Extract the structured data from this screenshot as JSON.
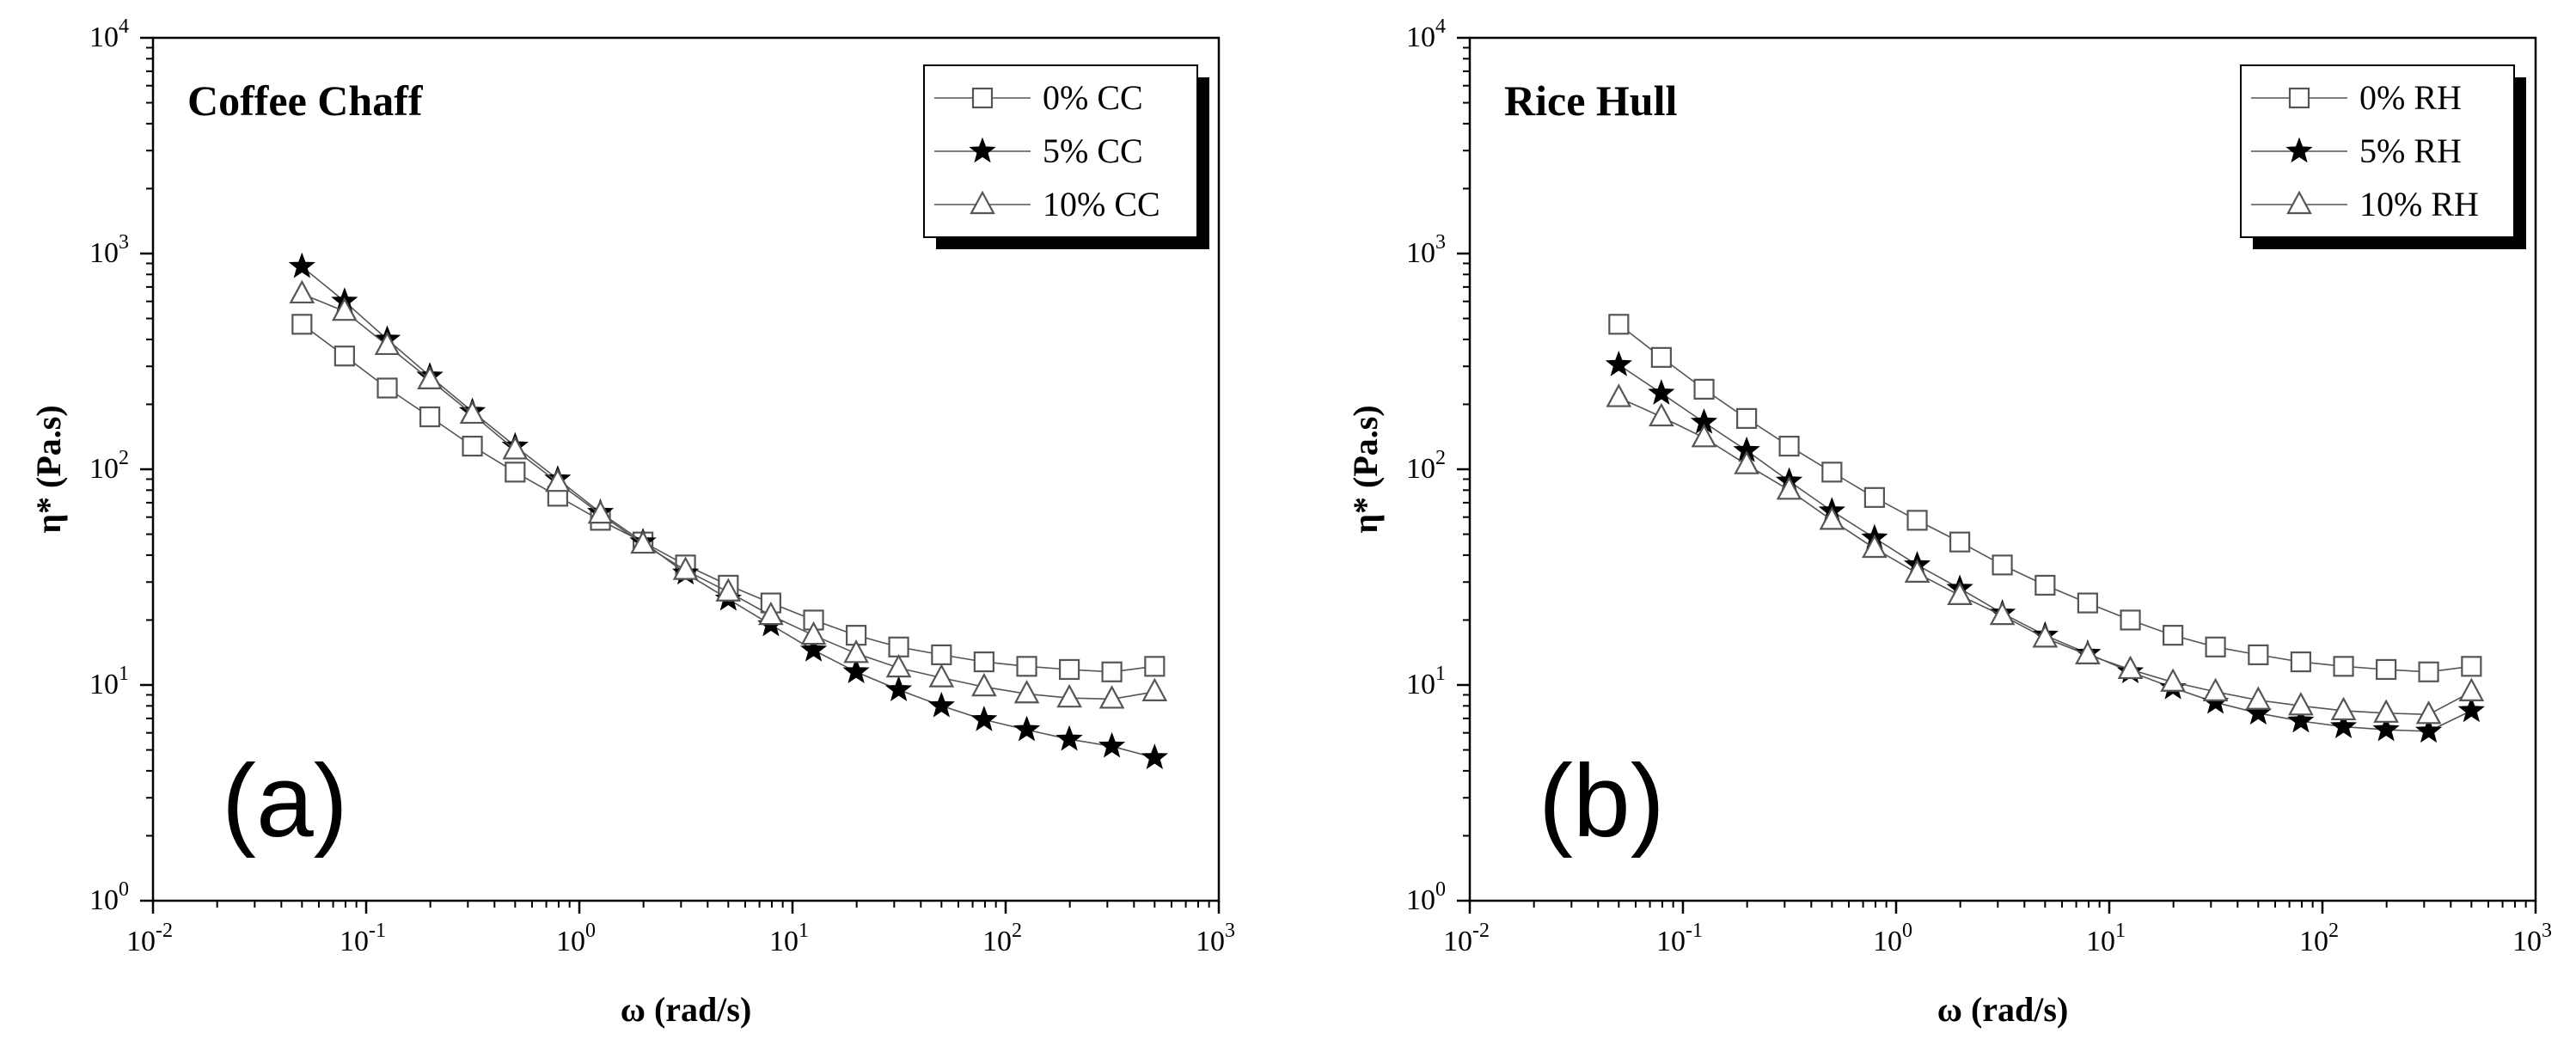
{
  "colors": {
    "axis": "#000000",
    "series_line": "#555555",
    "open_marker": "#555555",
    "filled_marker": "#000000",
    "background": "#ffffff"
  },
  "chart_data": [
    {
      "type": "line",
      "title": "Coffee Chaff",
      "panel_label": "(a)",
      "xlabel": "ω (rad/s)",
      "ylabel": "η* (Pa.s)",
      "xscale": "log",
      "yscale": "log",
      "xlim": [
        0.01,
        1000
      ],
      "ylim": [
        1,
        10000
      ],
      "x_ticks": [
        {
          "value": 0.01,
          "base": "10",
          "exp": "-2"
        },
        {
          "value": 0.1,
          "base": "10",
          "exp": "-1"
        },
        {
          "value": 1,
          "base": "10",
          "exp": "0"
        },
        {
          "value": 10,
          "base": "10",
          "exp": "1"
        },
        {
          "value": 100,
          "base": "10",
          "exp": "2"
        },
        {
          "value": 1000,
          "base": "10",
          "exp": "3"
        }
      ],
      "y_ticks": [
        {
          "value": 1,
          "base": "10",
          "exp": "0"
        },
        {
          "value": 10,
          "base": "10",
          "exp": "1"
        },
        {
          "value": 100,
          "base": "10",
          "exp": "2"
        },
        {
          "value": 1000,
          "base": "10",
          "exp": "3"
        },
        {
          "value": 10000,
          "base": "10",
          "exp": "4"
        }
      ],
      "legend_position": "top-right",
      "x": [
        0.05,
        0.0792,
        0.1256,
        0.199,
        0.315,
        0.5,
        0.792,
        1.256,
        1.99,
        3.15,
        5,
        7.92,
        12.56,
        19.9,
        31.5,
        50,
        79.2,
        125.6,
        199,
        315,
        500
      ],
      "series": [
        {
          "name": "0% CC",
          "marker": "square",
          "values": [
            470,
            335,
            238,
            175,
            128,
            97,
            75,
            58,
            46,
            36,
            29,
            24,
            20,
            17,
            15,
            13.8,
            12.8,
            12.2,
            11.8,
            11.5,
            12.2
          ]
        },
        {
          "name": "5% CC",
          "marker": "star",
          "values": [
            870,
            600,
            400,
            270,
            185,
            128,
            90,
            63,
            46,
            33,
            25,
            19,
            14.5,
            11.5,
            9.5,
            8,
            6.9,
            6.2,
            5.6,
            5.2,
            4.6
          ]
        },
        {
          "name": "10% CC",
          "marker": "triangle",
          "values": [
            650,
            540,
            375,
            260,
            180,
            123,
            87,
            62,
            45,
            34,
            27,
            21,
            17,
            14,
            12,
            10.8,
            9.8,
            9.1,
            8.7,
            8.6,
            9.3
          ]
        }
      ]
    },
    {
      "type": "line",
      "title": "Rice Hull",
      "panel_label": "(b)",
      "xlabel": "ω (rad/s)",
      "ylabel": "η* (Pa.s)",
      "xscale": "log",
      "yscale": "log",
      "xlim": [
        0.01,
        1000
      ],
      "ylim": [
        1,
        10000
      ],
      "x_ticks": [
        {
          "value": 0.01,
          "base": "10",
          "exp": "-2"
        },
        {
          "value": 0.1,
          "base": "10",
          "exp": "-1"
        },
        {
          "value": 1,
          "base": "10",
          "exp": "0"
        },
        {
          "value": 10,
          "base": "10",
          "exp": "1"
        },
        {
          "value": 100,
          "base": "10",
          "exp": "2"
        },
        {
          "value": 1000,
          "base": "10",
          "exp": "3"
        }
      ],
      "y_ticks": [
        {
          "value": 1,
          "base": "10",
          "exp": "0"
        },
        {
          "value": 10,
          "base": "10",
          "exp": "1"
        },
        {
          "value": 100,
          "base": "10",
          "exp": "2"
        },
        {
          "value": 1000,
          "base": "10",
          "exp": "3"
        },
        {
          "value": 10000,
          "base": "10",
          "exp": "4"
        }
      ],
      "legend_position": "top-right",
      "x": [
        0.05,
        0.0792,
        0.1256,
        0.199,
        0.315,
        0.5,
        0.792,
        1.256,
        1.99,
        3.15,
        5,
        7.92,
        12.56,
        19.9,
        31.5,
        50,
        79.2,
        125.6,
        199,
        315,
        500
      ],
      "series": [
        {
          "name": "0% RH",
          "marker": "square",
          "values": [
            470,
            330,
            235,
            172,
            128,
            97,
            74,
            58,
            46,
            36,
            29,
            24,
            20,
            17,
            15,
            13.8,
            12.8,
            12.2,
            11.8,
            11.5,
            12.2
          ]
        },
        {
          "name": "5% RH",
          "marker": "star",
          "values": [
            305,
            225,
            165,
            122,
            88,
            64,
            48,
            36,
            28,
            21.5,
            17,
            14,
            11.5,
            9.7,
            8.3,
            7.4,
            6.8,
            6.4,
            6.2,
            6.1,
            7.6
          ]
        },
        {
          "name": "10% RH",
          "marker": "triangle",
          "values": [
            215,
            175,
            140,
            105,
            80,
            58,
            43,
            33,
            26,
            21,
            16.5,
            13.8,
            11.8,
            10.3,
            9.3,
            8.5,
            8.0,
            7.6,
            7.4,
            7.3,
            9.3
          ]
        }
      ]
    }
  ]
}
